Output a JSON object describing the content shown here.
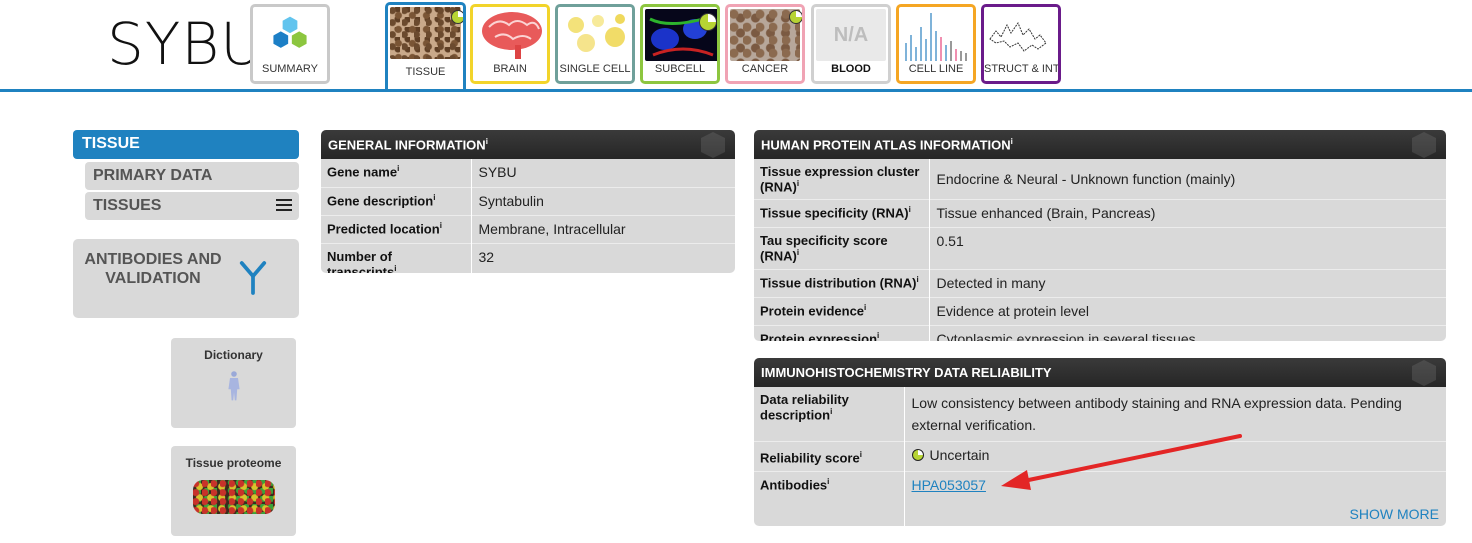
{
  "gene": {
    "title": "SYBU"
  },
  "tabs": [
    {
      "key": "summary",
      "label": "SUMMARY"
    },
    {
      "key": "tissue",
      "label": "TISSUE",
      "active": true
    },
    {
      "key": "brain",
      "label": "BRAIN"
    },
    {
      "key": "singlecell",
      "label": "SINGLE CELL"
    },
    {
      "key": "subcell",
      "label": "SUBCELL"
    },
    {
      "key": "cancer",
      "label": "CANCER"
    },
    {
      "key": "blood",
      "label": "BLOOD",
      "placeholder": "N/A"
    },
    {
      "key": "cellline",
      "label": "CELL LINE"
    },
    {
      "key": "struct",
      "label": "STRUCT & INT"
    }
  ],
  "sidebar": {
    "tissue": "TISSUE",
    "primary_data": "PRIMARY DATA",
    "tissues": "TISSUES",
    "antibodies": "ANTIBODIES AND VALIDATION",
    "dictionary": "Dictionary",
    "tissue_proteome": "Tissue proteome"
  },
  "general": {
    "title": "GENERAL INFORMATION",
    "rows": [
      {
        "key": "Gene name",
        "value": "SYBU"
      },
      {
        "key": "Gene description",
        "value": "Syntabulin"
      },
      {
        "key": "Predicted location",
        "value": "Membrane, Intracellular"
      },
      {
        "key": "Number of transcripts",
        "value": "32"
      }
    ]
  },
  "hpa": {
    "title": "HUMAN PROTEIN ATLAS INFORMATION",
    "rows": [
      {
        "key": "Tissue expression cluster (RNA)",
        "value": "Endocrine & Neural - Unknown function (mainly)"
      },
      {
        "key": "Tissue specificity (RNA)",
        "value": "Tissue enhanced (Brain, Pancreas)"
      },
      {
        "key": "Tau specificity score (RNA)",
        "value": "0.51"
      },
      {
        "key": "Tissue distribution (RNA)",
        "value": "Detected in many"
      },
      {
        "key": "Protein evidence",
        "value": "Evidence at protein level"
      },
      {
        "key": "Protein expression",
        "value": "Cytoplasmic expression in several tissues."
      }
    ]
  },
  "ihc": {
    "title": "IMMUNOHISTOCHEMISTRY DATA RELIABILITY",
    "description_key": "Data reliability description",
    "description": "Low consistency between antibody staining and RNA expression data. Pending external verification.",
    "score_key": "Reliability score",
    "score": "Uncertain",
    "antibodies_key": "Antibodies",
    "antibody": "HPA053057",
    "show_more": "SHOW MORE"
  },
  "colors": {
    "accent": "#1f82c0",
    "panel_bg": "#d9d9d9",
    "panel_head": "#2e2e2e",
    "annotation_arrow": "#e32626"
  }
}
